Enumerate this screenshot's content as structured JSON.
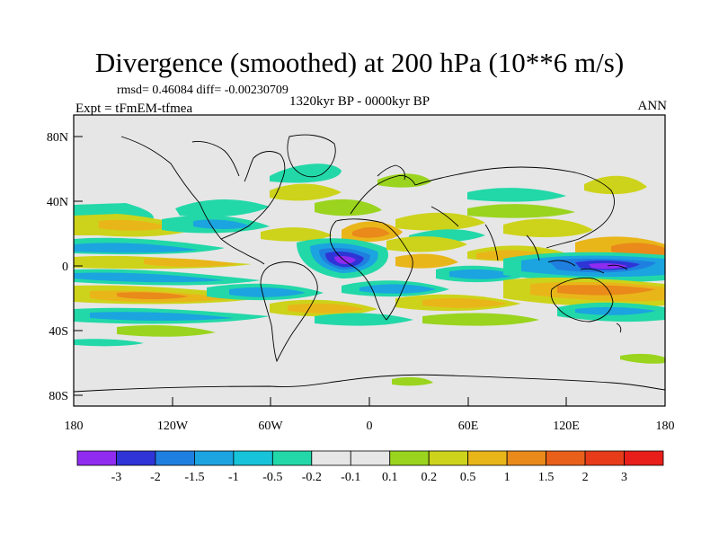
{
  "title": "Divergence (smoothed) at 200 hPa (10**6 m/s)",
  "stats": "rmsd= 0.46084 diff= -0.00230709",
  "period": "1320kyr BP - 0000kyr BP",
  "experiment": "Expt = tFmEM-tfmea",
  "season": "ANN",
  "lat_labels": [
    "80N",
    "40N",
    "0",
    "40S",
    "80S"
  ],
  "lon_labels": [
    "180",
    "120W",
    "60W",
    "0",
    "60E",
    "120E",
    "180"
  ],
  "colorbar": {
    "colors": [
      "#8f2cf0",
      "#2f34d6",
      "#1f7fe0",
      "#1ba4e0",
      "#17c3d8",
      "#22d8a8",
      "#e6e6e6",
      "#e6e6e6",
      "#9ad41e",
      "#cdd31a",
      "#e9b61a",
      "#e98a1a",
      "#e8601a",
      "#e63c1a",
      "#e81e1a"
    ],
    "labels": [
      "-3",
      "-2",
      "-1.5",
      "-1",
      "-0.5",
      "-0.2",
      "-0.1",
      "0.1",
      "0.2",
      "0.5",
      "1",
      "1.5",
      "2",
      "3"
    ]
  }
}
